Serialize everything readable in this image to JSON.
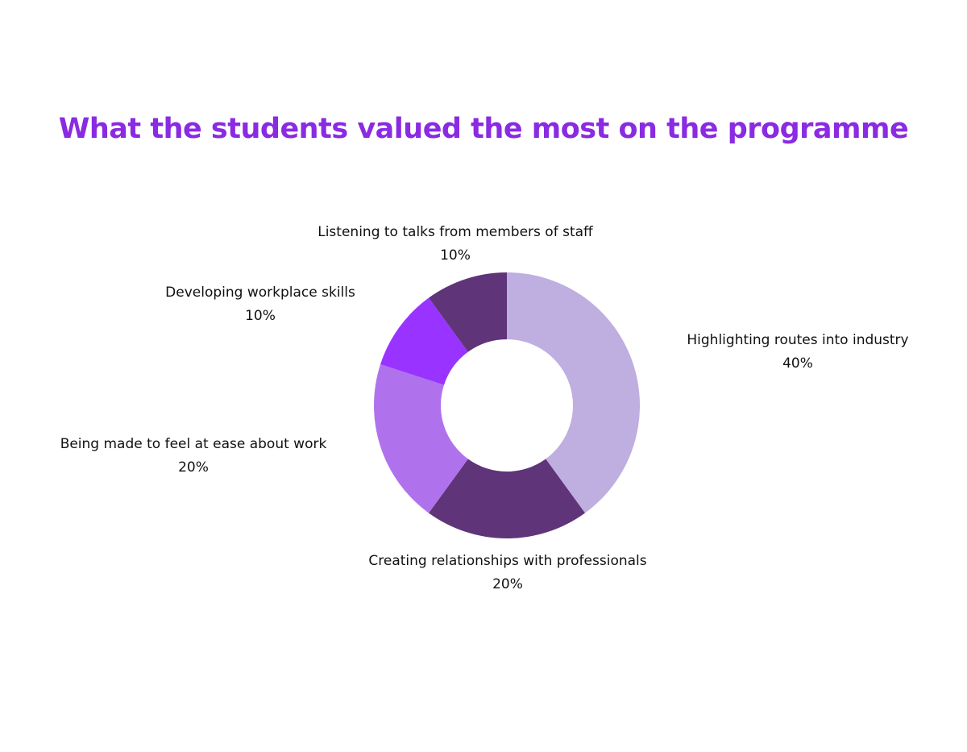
{
  "chart_data": {
    "type": "pie",
    "donut": true,
    "title": "What the students valued the most on the programme",
    "slices": [
      {
        "label": "Highlighting routes into industry",
        "value": 40,
        "value_label": "40%",
        "color": "#bfaee0"
      },
      {
        "label": "Creating relationships with professionals",
        "value": 20,
        "value_label": "20%",
        "color": "#5f3479"
      },
      {
        "label": "Being made to feel at ease about work",
        "value": 20,
        "value_label": "20%",
        "color": "#b072ec"
      },
      {
        "label": "Developing workplace skills",
        "value": 10,
        "value_label": "10%",
        "color": "#9933ff"
      },
      {
        "label": "Listening to talks from members of staff",
        "value": 10,
        "value_label": "10%",
        "color": "#5f3479"
      }
    ],
    "title_color": "#8a2be2",
    "legend": "none"
  }
}
